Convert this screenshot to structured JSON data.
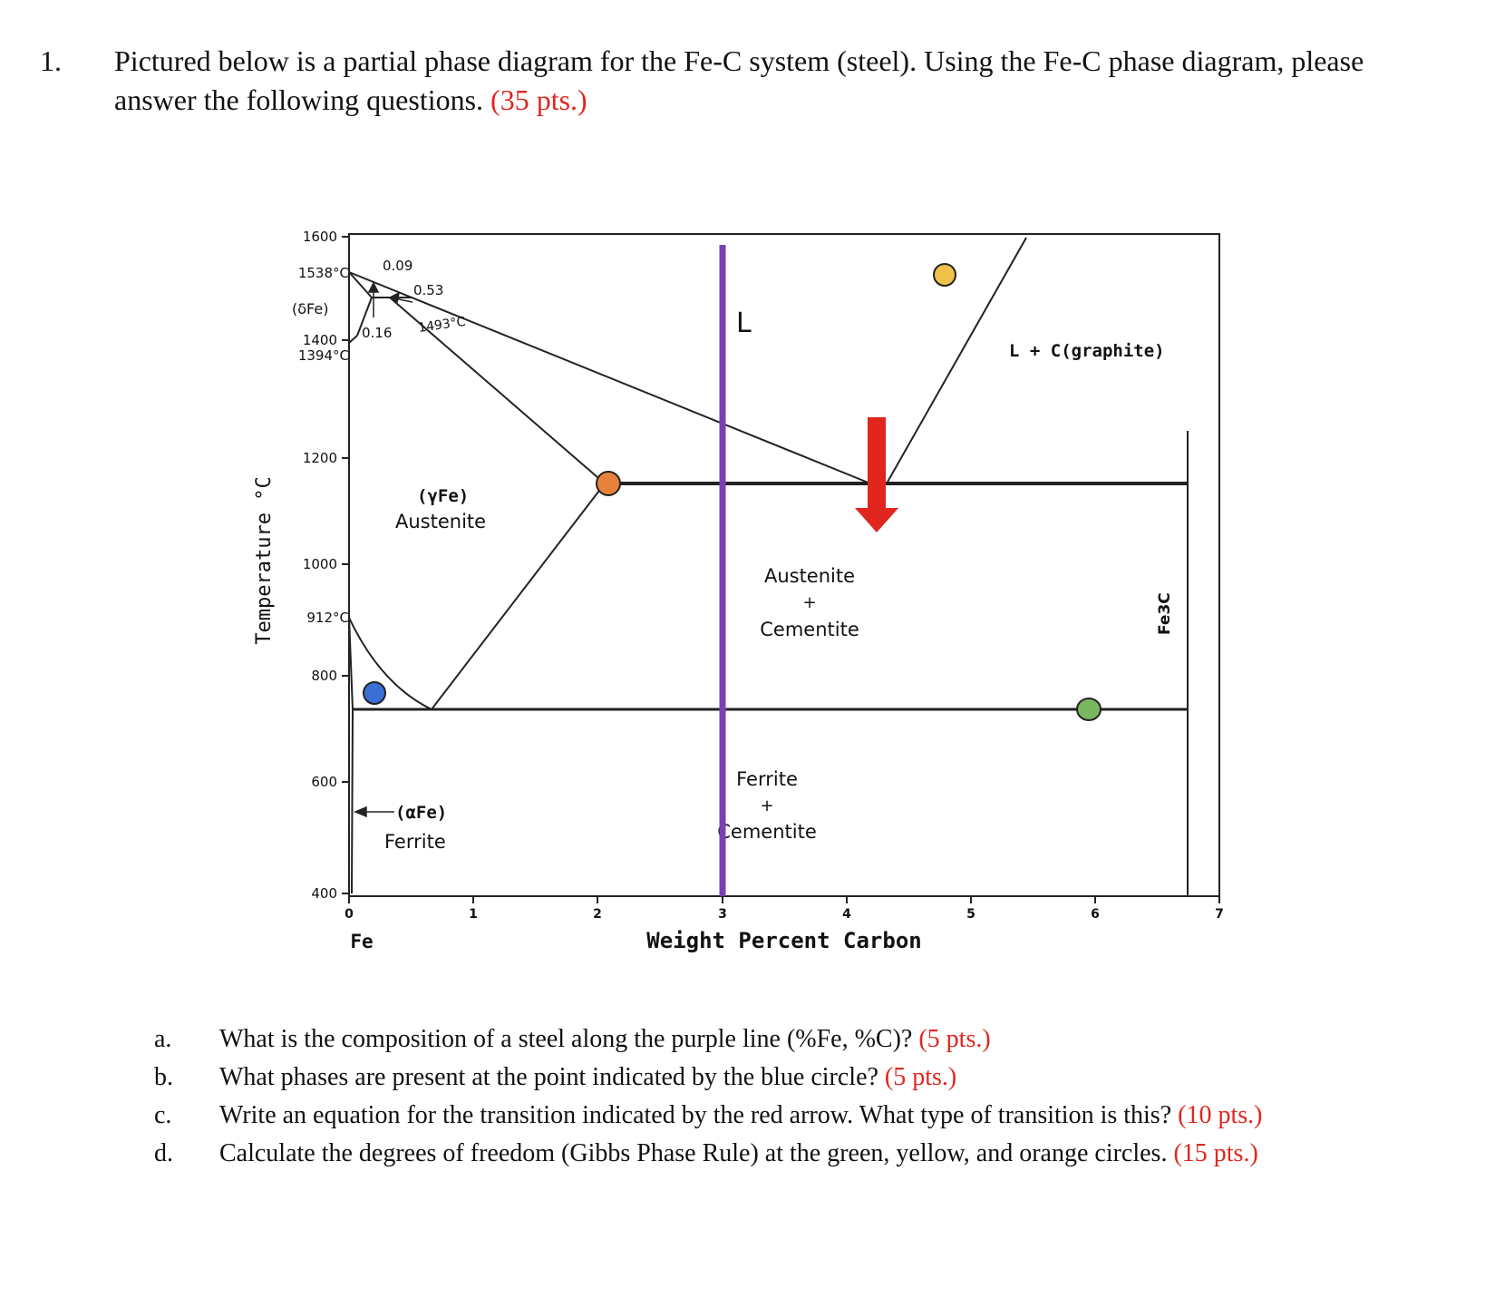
{
  "question": {
    "number": "1.",
    "text": "Pictured below is a partial phase diagram for the Fe-C system (steel). Using the Fe-C phase diagram, please answer the following questions.",
    "points": "(35 pts.)"
  },
  "diagram": {
    "y_axis_title": "Temperature °C",
    "x_axis_title": "Weight Percent Carbon",
    "x_sub_label": "Fe",
    "y_ticks": [
      "1600",
      "1400",
      "1200",
      "1000",
      "800",
      "600",
      "400"
    ],
    "y_special": [
      "1538°C",
      "1394°C",
      "912°C"
    ],
    "x_ticks": [
      "0",
      "1",
      "2",
      "3",
      "4",
      "5",
      "6",
      "7"
    ],
    "labels": {
      "delta_fe": "(δFe)",
      "c009": "0.09",
      "c053": "0.53",
      "c016": "0.16",
      "t1493": "1493°C",
      "liquid": "L",
      "l_graphite": "L + C(graphite)",
      "gamma_fe": "(γFe)",
      "austenite": "Austenite",
      "aust_cem_1": "Austenite",
      "aust_cem_plus": "+",
      "aust_cem_2": "Cementite",
      "fe3c": "Fe3C",
      "ferrite_cem_1": "Ferrite",
      "ferrite_cem_plus": "+",
      "ferrite_cem_2": "Cementite",
      "alpha_fe": "(αFe)",
      "ferrite": "Ferrite"
    },
    "marker_colors": {
      "purple_line": "#7b3fb5",
      "red_arrow": "#e0261f",
      "blue_circle": "#3a6fd6",
      "orange_circle": "#e8823a",
      "yellow_circle": "#f0c24c",
      "green_circle": "#7bb661"
    }
  },
  "sub_questions": [
    {
      "letter": "a.",
      "text": "What is the composition of a steel along the purple line (%Fe, %C)?",
      "points": "(5 pts.)"
    },
    {
      "letter": "b.",
      "text": "What phases are present at the point indicated by the blue circle?",
      "points": "(5 pts.)"
    },
    {
      "letter": "c.",
      "text": "Write an equation for the transition indicated by the red arrow. What type of transition is this?",
      "points": "(10 pts.)"
    },
    {
      "letter": "d.",
      "text": "Calculate the degrees of freedom (Gibbs Phase Rule) at the green, yellow, and orange circles.",
      "points": "(15 pts.)"
    }
  ]
}
